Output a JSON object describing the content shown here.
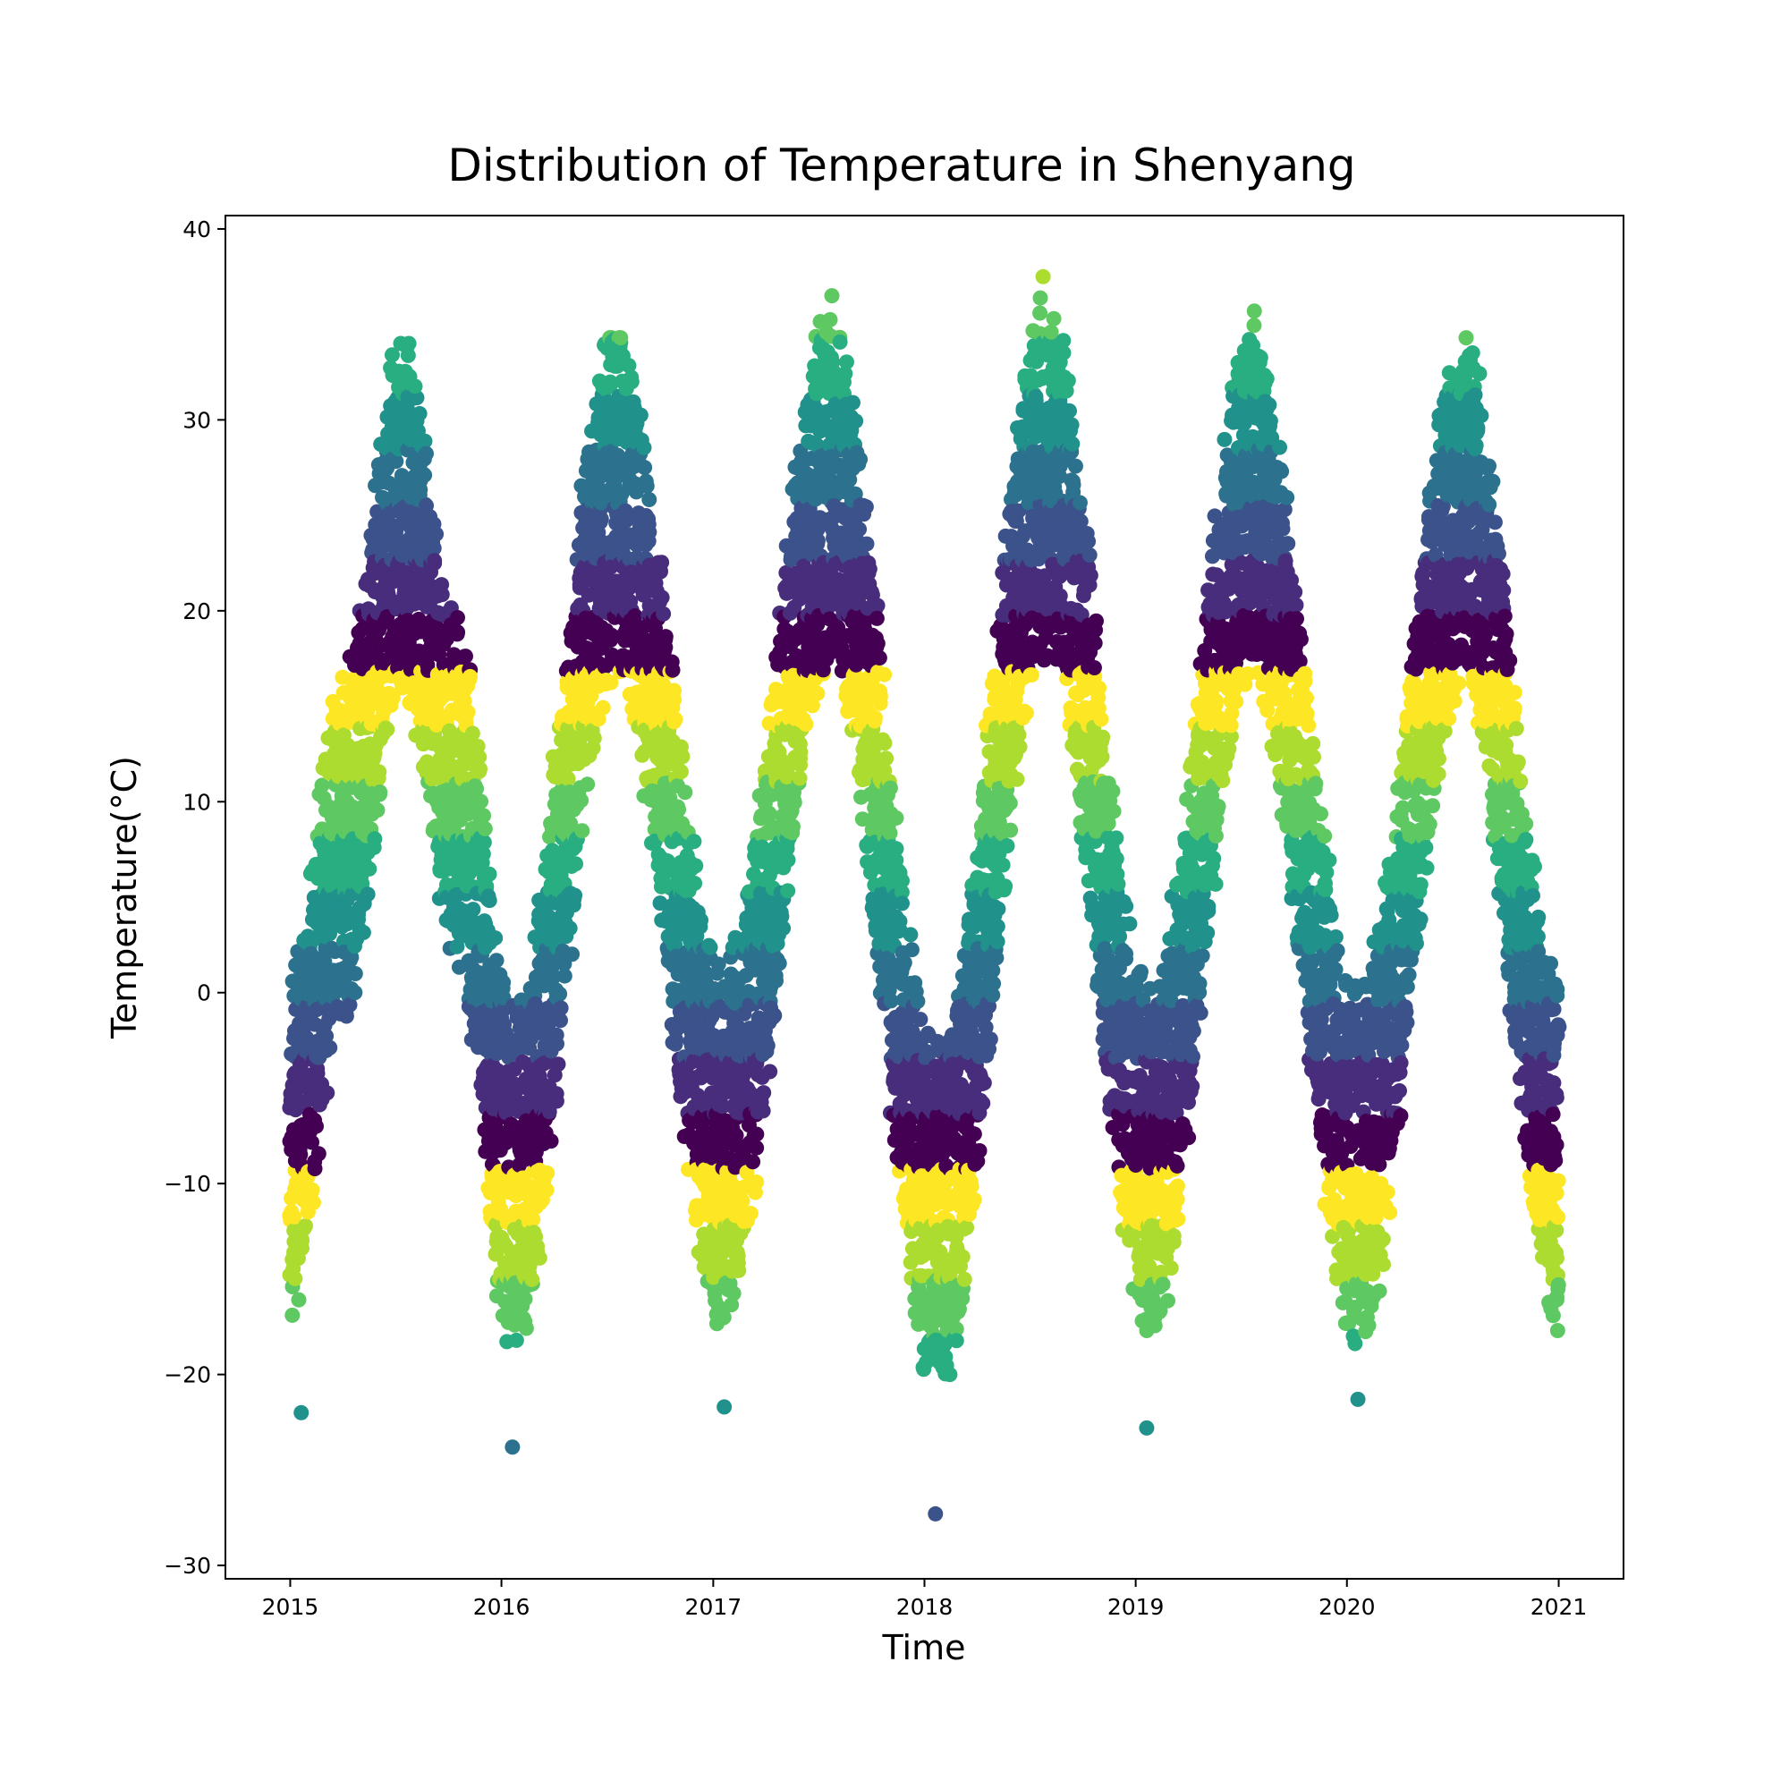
{
  "chart_data": {
    "type": "scatter",
    "title": "Distribution of Temperature in Shenyang",
    "xlabel": "Time",
    "ylabel": "Temperature(°C)",
    "x_range": [
      "2014-09-11",
      "2021-04-23"
    ],
    "ylim": [
      -30.7,
      40.7
    ],
    "x_ticks": [
      {
        "date": "2015-01-01",
        "label": "2015"
      },
      {
        "date": "2016-01-01",
        "label": "2016"
      },
      {
        "date": "2017-01-01",
        "label": "2017"
      },
      {
        "date": "2018-01-01",
        "label": "2018"
      },
      {
        "date": "2019-01-01",
        "label": "2019"
      },
      {
        "date": "2020-01-01",
        "label": "2020"
      },
      {
        "date": "2021-01-01",
        "label": "2021"
      }
    ],
    "y_ticks": [
      {
        "value": -30,
        "label": "−30"
      },
      {
        "value": -20,
        "label": "−20"
      },
      {
        "value": -10,
        "label": "−10"
      },
      {
        "value": 0,
        "label": "0"
      },
      {
        "value": 10,
        "label": "10"
      },
      {
        "value": 20,
        "label": "20"
      },
      {
        "value": 30,
        "label": "30"
      },
      {
        "value": 40,
        "label": "40"
      }
    ],
    "grid": false,
    "legend": "none",
    "colormap": "viridis",
    "palette": [
      "#440154",
      "#472d7b",
      "#3b528b",
      "#2c728e",
      "#21918c",
      "#28ae80",
      "#5ec962",
      "#addc30",
      "#fde725"
    ],
    "date_range": [
      "2015-01-01",
      "2020-12-31"
    ],
    "temperature_extremes": {
      "max": 37.5,
      "min": -27.3
    },
    "yearly_peaks": [
      {
        "year": 2015,
        "summer_max": 34.0,
        "winter_min": -22.0
      },
      {
        "year": 2016,
        "summer_max": 34.3,
        "winter_min": -23.8
      },
      {
        "year": 2017,
        "summer_max": 36.5,
        "winter_min": -21.7
      },
      {
        "year": 2018,
        "summer_max": 37.5,
        "winter_min": -27.3
      },
      {
        "year": 2019,
        "summer_max": 35.7,
        "winter_min": -22.8
      },
      {
        "year": 2020,
        "summer_max": 34.3,
        "winter_min": -21.3
      }
    ],
    "daily_mean_curve": [
      {
        "date": "2015-01-05",
        "temp": -8.0
      },
      {
        "date": "2015-04-01",
        "temp": 7.5
      },
      {
        "date": "2015-07-15",
        "temp": 25.0
      },
      {
        "date": "2015-10-15",
        "temp": 11.0
      },
      {
        "date": "2016-01-20",
        "temp": -10.0
      },
      {
        "date": "2016-07-15",
        "temp": 25.5
      },
      {
        "date": "2017-01-20",
        "temp": -8.0
      },
      {
        "date": "2017-07-20",
        "temp": 26.0
      },
      {
        "date": "2018-01-25",
        "temp": -12.0
      },
      {
        "date": "2018-07-30",
        "temp": 27.0
      },
      {
        "date": "2019-01-25",
        "temp": -9.0
      },
      {
        "date": "2019-07-20",
        "temp": 25.5
      },
      {
        "date": "2020-01-20",
        "temp": -9.0
      },
      {
        "date": "2020-07-20",
        "temp": 25.0
      },
      {
        "date": "2020-12-31",
        "temp": -8.0
      }
    ]
  }
}
